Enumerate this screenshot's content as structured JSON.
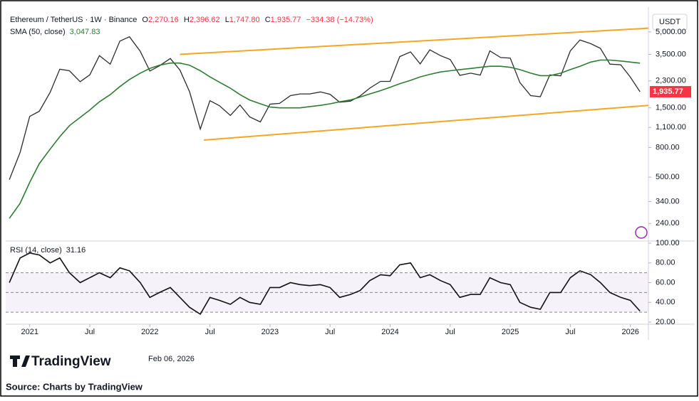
{
  "header": {
    "symbol": "Ethereum / TetherUS · 1W · Binance",
    "o_label": "O",
    "o": "2,270.16",
    "h_label": "H",
    "h": "2,396.62",
    "l_label": "L",
    "l": "1,747.80",
    "c_label": "C",
    "c": "1,935.77",
    "change": "−334.38 (−14.73%)",
    "currency": "USDT",
    "last_price_label": "1,935.77"
  },
  "chart_data": [
    {
      "type": "line",
      "yscale": "log",
      "xlim": [
        2020.8,
        2026.15
      ],
      "ylim": [
        190,
        7000
      ],
      "yticks": [
        {
          "value": 5000,
          "label": "5,000.00"
        },
        {
          "value": 3500,
          "label": "3,500.00"
        },
        {
          "value": 2300,
          "label": "2,300.00"
        },
        {
          "value": 1500,
          "label": "1,500.00"
        },
        {
          "value": 1100,
          "label": "1,100.00"
        },
        {
          "value": 800,
          "label": "800.00"
        },
        {
          "value": 500,
          "label": "500.00"
        },
        {
          "value": 340,
          "label": "340.00"
        },
        {
          "value": 240,
          "label": "240.00"
        }
      ],
      "x": [
        2020.83,
        2020.92,
        2021.0,
        2021.08,
        2021.17,
        2021.25,
        2021.33,
        2021.42,
        2021.5,
        2021.58,
        2021.67,
        2021.75,
        2021.83,
        2021.92,
        2022.0,
        2022.08,
        2022.17,
        2022.25,
        2022.33,
        2022.42,
        2022.5,
        2022.58,
        2022.67,
        2022.75,
        2022.83,
        2022.92,
        2023.0,
        2023.08,
        2023.17,
        2023.25,
        2023.33,
        2023.42,
        2023.5,
        2023.58,
        2023.67,
        2023.75,
        2023.83,
        2023.92,
        2024.0,
        2024.08,
        2024.17,
        2024.25,
        2024.33,
        2024.42,
        2024.5,
        2024.58,
        2024.67,
        2024.75,
        2024.83,
        2024.92,
        2025.0,
        2025.08,
        2025.17,
        2025.25,
        2025.33,
        2025.42,
        2025.5,
        2025.58,
        2025.67,
        2025.75,
        2025.83,
        2025.92,
        2026.0,
        2026.08
      ],
      "series": [
        {
          "name": "Ethereum / TetherUS",
          "color": "#2c2c2c",
          "values": [
            480,
            740,
            1310,
            1420,
            1920,
            2770,
            2700,
            2270,
            2530,
            3430,
            3000,
            4320,
            4630,
            3680,
            2690,
            2920,
            3280,
            2730,
            1940,
            1070,
            1680,
            1550,
            1330,
            1570,
            1300,
            1200,
            1590,
            1610,
            1820,
            1870,
            1870,
            1930,
            1860,
            1640,
            1670,
            1810,
            2050,
            2280,
            2280,
            3380,
            3640,
            3010,
            3760,
            3430,
            3230,
            2510,
            2600,
            2520,
            3700,
            3330,
            3300,
            2240,
            1820,
            1790,
            2530,
            2490,
            3700,
            4400,
            4150,
            3850,
            3000,
            2970,
            2440,
            1935.77
          ]
        },
        {
          "name": "SMA (50, close)",
          "value_label": "3,047.83",
          "color": "#2e7d32",
          "values": [
            260,
            330,
            460,
            620,
            780,
            950,
            1130,
            1290,
            1450,
            1650,
            1850,
            2100,
            2350,
            2600,
            2800,
            2950,
            3050,
            3050,
            2950,
            2700,
            2450,
            2250,
            2050,
            1850,
            1700,
            1600,
            1520,
            1500,
            1500,
            1500,
            1530,
            1560,
            1600,
            1650,
            1700,
            1780,
            1870,
            1970,
            2080,
            2200,
            2320,
            2450,
            2550,
            2650,
            2700,
            2750,
            2800,
            2850,
            2900,
            2900,
            2850,
            2750,
            2600,
            2500,
            2500,
            2600,
            2750,
            2900,
            3100,
            3200,
            3200,
            3150,
            3100,
            3047.83
          ]
        }
      ],
      "trendlines": [
        {
          "color": "#f5a623",
          "x": [
            2022.25,
            2026.15
          ],
          "y": [
            3500,
            5300
          ]
        },
        {
          "color": "#f5a623",
          "x": [
            2022.45,
            2026.15
          ],
          "y": [
            900,
            1560
          ]
        }
      ]
    },
    {
      "type": "line",
      "title": "RSI (14, close)",
      "value_label": "31.16",
      "xlim": [
        2020.8,
        2026.15
      ],
      "ylim": [
        20,
        100
      ],
      "yticks": [
        {
          "value": 100,
          "label": "100.00"
        },
        {
          "value": 80,
          "label": "80.00"
        },
        {
          "value": 60,
          "label": "60.00"
        },
        {
          "value": 40,
          "label": "40.00"
        },
        {
          "value": 20,
          "label": "20.00"
        }
      ],
      "bands": [
        30,
        50,
        70
      ],
      "band_color": "#7e57c2",
      "xticks": [
        {
          "value": 2021,
          "label": "2021"
        },
        {
          "value": 2021.5,
          "label": "Jul"
        },
        {
          "value": 2022,
          "label": "2022"
        },
        {
          "value": 2022.5,
          "label": "Jul"
        },
        {
          "value": 2023,
          "label": "2023"
        },
        {
          "value": 2023.5,
          "label": "Jul"
        },
        {
          "value": 2024,
          "label": "2024"
        },
        {
          "value": 2024.5,
          "label": "Jul"
        },
        {
          "value": 2025,
          "label": "2025"
        },
        {
          "value": 2025.5,
          "label": "Jul"
        },
        {
          "value": 2026,
          "label": "2026"
        }
      ],
      "x": [
        2020.83,
        2020.92,
        2021.0,
        2021.08,
        2021.17,
        2021.25,
        2021.33,
        2021.42,
        2021.5,
        2021.58,
        2021.67,
        2021.75,
        2021.83,
        2021.92,
        2022.0,
        2022.08,
        2022.17,
        2022.25,
        2022.33,
        2022.42,
        2022.5,
        2022.58,
        2022.67,
        2022.75,
        2022.83,
        2022.92,
        2023.0,
        2023.08,
        2023.17,
        2023.25,
        2023.33,
        2023.42,
        2023.5,
        2023.58,
        2023.67,
        2023.75,
        2023.83,
        2023.92,
        2024.0,
        2024.08,
        2024.17,
        2024.25,
        2024.33,
        2024.42,
        2024.5,
        2024.58,
        2024.67,
        2024.75,
        2024.83,
        2024.92,
        2025.0,
        2025.08,
        2025.17,
        2025.25,
        2025.33,
        2025.42,
        2025.5,
        2025.58,
        2025.67,
        2025.75,
        2025.83,
        2025.92,
        2026.0,
        2026.08
      ],
      "series": [
        {
          "name": "RSI",
          "color": "#111111",
          "values": [
            60,
            85,
            90,
            88,
            80,
            85,
            70,
            60,
            65,
            70,
            65,
            75,
            72,
            60,
            45,
            50,
            55,
            45,
            35,
            28,
            45,
            42,
            38,
            45,
            40,
            38,
            55,
            55,
            60,
            58,
            57,
            58,
            55,
            45,
            48,
            52,
            62,
            68,
            67,
            78,
            80,
            65,
            68,
            62,
            58,
            45,
            48,
            48,
            65,
            60,
            58,
            40,
            35,
            33,
            50,
            50,
            65,
            72,
            68,
            60,
            50,
            45,
            42,
            31.16
          ]
        }
      ]
    }
  ],
  "footer": {
    "brand": "TradingView",
    "date": "Feb 06, 2026",
    "source": "Source: Charts by TradingView"
  }
}
